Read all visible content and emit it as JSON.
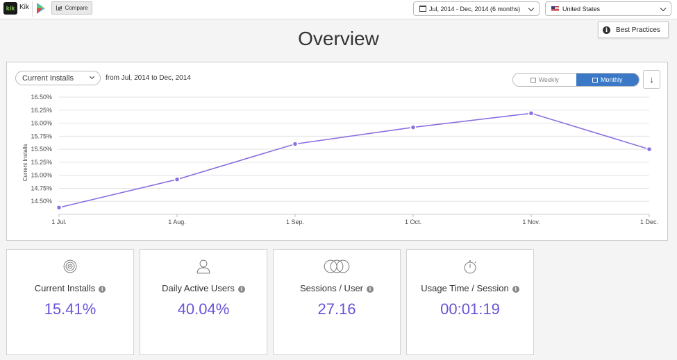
{
  "topbar": {
    "app_name": "Kik",
    "app_logo_text": "kik",
    "compare_label": "Compare",
    "date_range": "Jul, 2014 - Dec, 2014 (6 months)",
    "country": "United States"
  },
  "page": {
    "title": "Overview",
    "best_practices_label": "Best Practices"
  },
  "chart_panel": {
    "metric_selected": "Current Installs",
    "range_text": "from Jul, 2014 to Dec, 2014",
    "weekly_label": "Weekly",
    "monthly_label": "Monthly",
    "download_icon": "download-icon",
    "line_color": "#8b6fe0",
    "active_toggle_color": "#3b79c7"
  },
  "chart_data": {
    "type": "line",
    "x": [
      "1 Jul.",
      "1 Aug.",
      "1 Sep.",
      "1 Oct.",
      "1 Nov.",
      "1 Dec."
    ],
    "series": [
      {
        "values": [
          14.38,
          14.92,
          15.6,
          15.92,
          16.19,
          15.5
        ]
      }
    ],
    "yticks": [
      "14.50%",
      "14.75%",
      "15.00%",
      "15.25%",
      "15.50%",
      "15.75%",
      "16.00%",
      "16.25%",
      "16.50%"
    ],
    "ylim": [
      14.25,
      16.5
    ],
    "ylabel": "Current Installs",
    "xlabel": "",
    "title": "",
    "grid": true
  },
  "cards": [
    {
      "label": "Current Installs",
      "value": "15.41%",
      "icon": "target-icon"
    },
    {
      "label": "Daily Active Users",
      "value": "40.04%",
      "icon": "user-icon"
    },
    {
      "label": "Sessions / User",
      "value": "27.16",
      "icon": "sessions-icon"
    },
    {
      "label": "Usage Time / Session",
      "value": "00:01:19",
      "icon": "stopwatch-icon"
    }
  ]
}
